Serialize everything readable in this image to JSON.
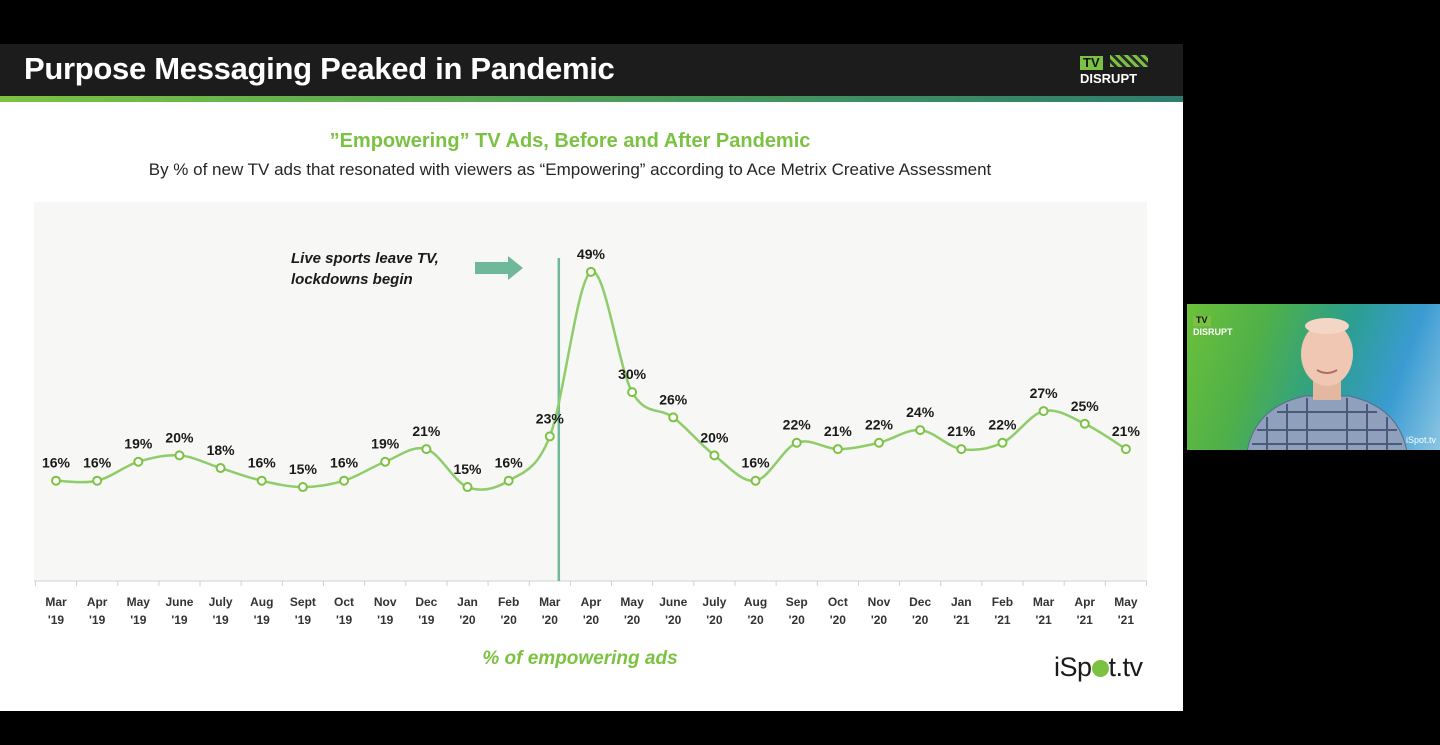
{
  "slide": {
    "title": "Purpose Messaging Peaked in Pandemic",
    "logo_tv": "TV",
    "logo_disrupt": "DISRUPT",
    "brand_logo_text": "iSp",
    "brand_logo_suffix": "t.tv",
    "x_axis_caption": "% of empowering ads"
  },
  "colors": {
    "accent_green": "#7cc242",
    "line_green": "#8fcc6a",
    "arrow_teal": "#6fb89a",
    "title_bar": "#1c1c1c"
  },
  "chart_data": {
    "type": "line",
    "title": "”Empowering” TV Ads, Before and After Pandemic",
    "subtitle": "By % of new TV ads that resonated with viewers as “Empowering” according to Ace Metrix Creative Assessment",
    "xlabel": "% of empowering ads",
    "ylabel": "",
    "ylim": [
      0,
      55
    ],
    "categories": [
      [
        "Mar",
        "'19"
      ],
      [
        "Apr",
        "'19"
      ],
      [
        "May",
        "'19"
      ],
      [
        "June",
        "'19"
      ],
      [
        "July",
        "'19"
      ],
      [
        "Aug",
        "'19"
      ],
      [
        "Sept",
        "'19"
      ],
      [
        "Oct",
        "'19"
      ],
      [
        "Nov",
        "'19"
      ],
      [
        "Dec",
        "'19"
      ],
      [
        "Jan",
        "'20"
      ],
      [
        "Feb",
        "'20"
      ],
      [
        "Mar",
        "'20"
      ],
      [
        "Apr",
        "'20"
      ],
      [
        "May",
        "'20"
      ],
      [
        "June",
        "'20"
      ],
      [
        "July",
        "'20"
      ],
      [
        "Aug",
        "'20"
      ],
      [
        "Sep",
        "'20"
      ],
      [
        "Oct",
        "'20"
      ],
      [
        "Nov",
        "'20"
      ],
      [
        "Dec",
        "'20"
      ],
      [
        "Jan",
        "'21"
      ],
      [
        "Feb",
        "'21"
      ],
      [
        "Mar",
        "'21"
      ],
      [
        "Apr",
        "'21"
      ],
      [
        "May",
        "'21"
      ]
    ],
    "series": [
      {
        "name": "% of empowering ads",
        "values": [
          16,
          16,
          19,
          20,
          18,
          16,
          15,
          16,
          19,
          21,
          15,
          16,
          23,
          49,
          30,
          26,
          20,
          16,
          22,
          21,
          22,
          24,
          21,
          22,
          27,
          25,
          21
        ],
        "labels": [
          "16%",
          "16%",
          "19%",
          "20%",
          "18%",
          "16%",
          "15%",
          "16%",
          "19%",
          "21%",
          "15%",
          "16%",
          "23%",
          "49%",
          "30%",
          "26%",
          "20%",
          "16%",
          "22%",
          "21%",
          "22%",
          "24%",
          "21%",
          "22%",
          "27%",
          "25%",
          "21%"
        ]
      }
    ],
    "annotation": {
      "text_line1": "Live sports leave TV,",
      "text_line2": "lockdowns begin",
      "marker_category_index": 12
    },
    "grid": false
  },
  "video_overlay": {
    "logo_tv": "TV",
    "logo_disrupt": "DISRUPT",
    "brand": "iSpot.tv"
  }
}
